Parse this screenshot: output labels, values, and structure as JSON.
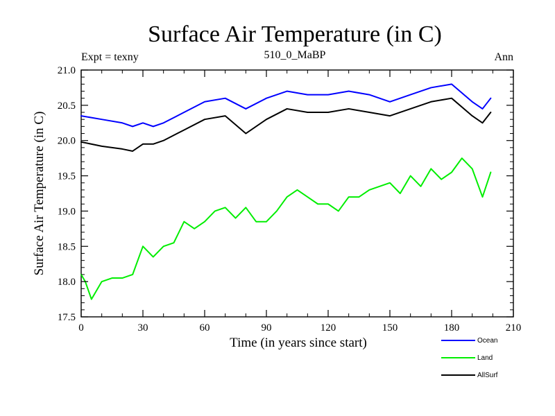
{
  "chart_data": {
    "type": "line",
    "title": "Surface Air Temperature (in C)",
    "subtitle": "510_0_MaBP",
    "left_note": "Expt = texny",
    "right_note": "Ann",
    "xlabel": "Time (in years since start)",
    "ylabel": "Surface Air Temperature (in C)",
    "xlim": [
      0,
      210
    ],
    "ylim": [
      17.5,
      21.0
    ],
    "x_ticks": [
      0,
      30,
      60,
      90,
      120,
      150,
      180,
      210
    ],
    "x_tick_labels": [
      "0",
      "30",
      "60",
      "90",
      "120",
      "150",
      "180",
      "210"
    ],
    "y_ticks": [
      17.5,
      18.0,
      18.5,
      19.0,
      19.5,
      20.0,
      20.5,
      21.0
    ],
    "y_tick_labels": [
      "17.5",
      "18.0",
      "18.5",
      "19.0",
      "19.5",
      "20.0",
      "20.5",
      "21.0"
    ],
    "grid": false,
    "legend_position": "bottom-right",
    "series": [
      {
        "name": "Ocean",
        "color": "#0000ff",
        "x": [
          0,
          10,
          20,
          25,
          30,
          35,
          40,
          50,
          60,
          70,
          80,
          90,
          100,
          110,
          120,
          130,
          140,
          150,
          160,
          170,
          180,
          190,
          195,
          199
        ],
        "values": [
          20.35,
          20.3,
          20.25,
          20.2,
          20.25,
          20.2,
          20.25,
          20.4,
          20.55,
          20.6,
          20.45,
          20.6,
          20.7,
          20.65,
          20.65,
          20.7,
          20.65,
          20.55,
          20.65,
          20.75,
          20.8,
          20.55,
          20.45,
          20.6
        ]
      },
      {
        "name": "Land",
        "color": "#00ee00",
        "x": [
          0,
          2,
          5,
          10,
          15,
          20,
          25,
          30,
          35,
          40,
          45,
          50,
          55,
          60,
          65,
          70,
          75,
          80,
          85,
          90,
          95,
          100,
          105,
          110,
          115,
          120,
          125,
          130,
          135,
          140,
          145,
          150,
          155,
          160,
          165,
          170,
          175,
          180,
          185,
          190,
          195,
          199
        ],
        "values": [
          18.1,
          18.0,
          17.75,
          18.0,
          18.05,
          18.05,
          18.1,
          18.5,
          18.35,
          18.5,
          18.55,
          18.85,
          18.75,
          18.85,
          19.0,
          19.05,
          18.9,
          19.05,
          18.85,
          18.85,
          19.0,
          19.2,
          19.3,
          19.2,
          19.1,
          19.1,
          19.0,
          19.2,
          19.2,
          19.3,
          19.35,
          19.4,
          19.25,
          19.5,
          19.35,
          19.6,
          19.45,
          19.55,
          19.75,
          19.6,
          19.2,
          19.55
        ]
      },
      {
        "name": "AllSurf",
        "color": "#000000",
        "x": [
          0,
          10,
          20,
          25,
          30,
          35,
          40,
          50,
          60,
          70,
          80,
          90,
          100,
          110,
          120,
          130,
          140,
          150,
          160,
          170,
          180,
          190,
          195,
          199
        ],
        "values": [
          19.98,
          19.92,
          19.88,
          19.85,
          19.95,
          19.95,
          20.0,
          20.15,
          20.3,
          20.35,
          20.1,
          20.3,
          20.45,
          20.4,
          20.4,
          20.45,
          20.4,
          20.35,
          20.45,
          20.55,
          20.6,
          20.35,
          20.25,
          20.4
        ]
      }
    ]
  }
}
